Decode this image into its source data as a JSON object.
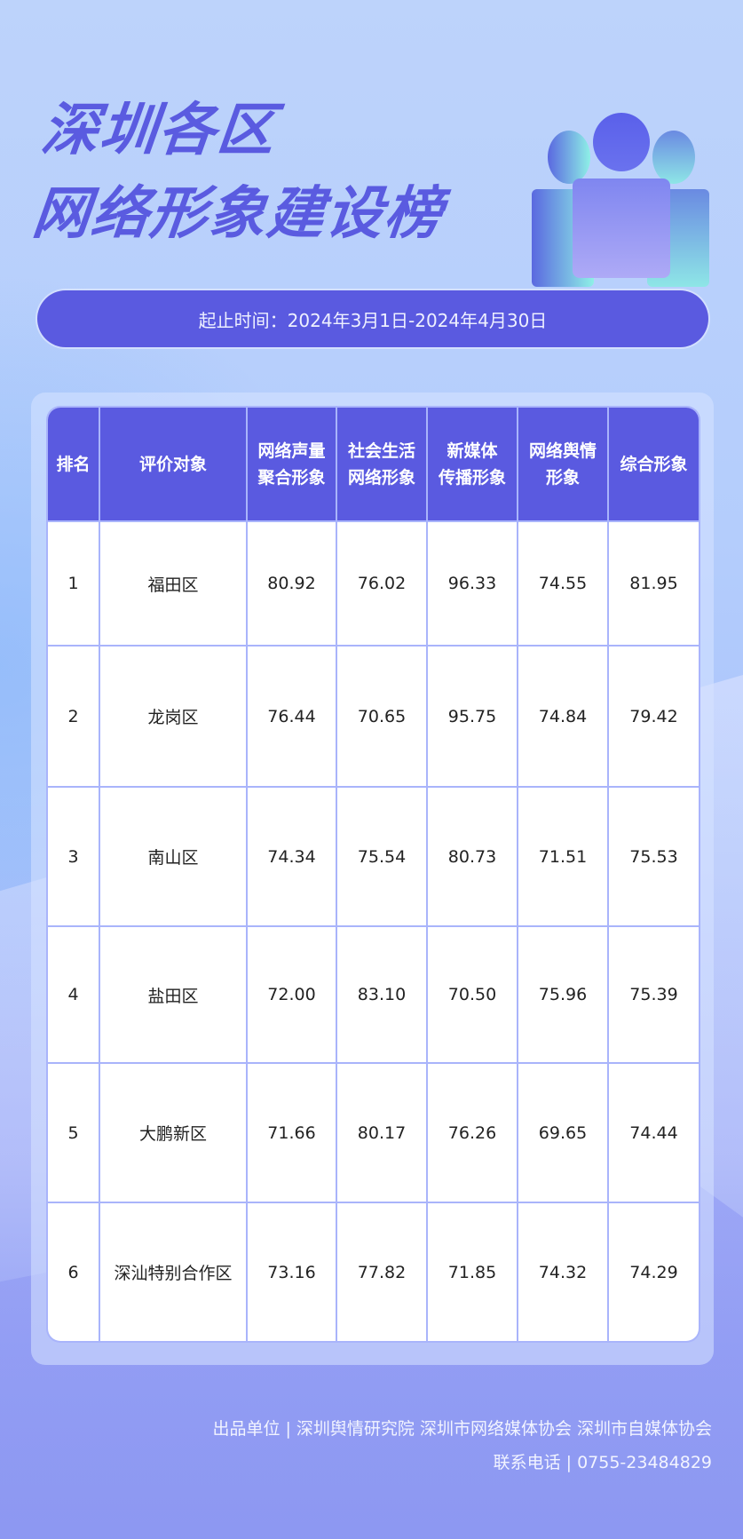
{
  "title": {
    "line1": "深圳各区",
    "line2": "网络形象建设榜"
  },
  "period": "起止时间：2024年3月1日-2024年4月30日",
  "colors": {
    "accent": "#5a5ae0",
    "border": "#a9b4fb"
  },
  "table": {
    "headers": [
      [
        "排名",
        ""
      ],
      [
        "评价对象",
        ""
      ],
      [
        "网络声量",
        "聚合形象"
      ],
      [
        "社会生活",
        "网络形象"
      ],
      [
        "新媒体",
        "传播形象"
      ],
      [
        "网络舆情",
        "形象"
      ],
      [
        "综合形象",
        ""
      ]
    ],
    "rows": [
      [
        "1",
        "福田区",
        "80.92",
        "76.02",
        "96.33",
        "74.55",
        "81.95"
      ],
      [
        "2",
        "龙岗区",
        "76.44",
        "70.65",
        "95.75",
        "74.84",
        "79.42"
      ],
      [
        "3",
        "南山区",
        "74.34",
        "75.54",
        "80.73",
        "71.51",
        "75.53"
      ],
      [
        "4",
        "盐田区",
        "72.00",
        "83.10",
        "70.50",
        "75.96",
        "75.39"
      ],
      [
        "5",
        "大鹏新区",
        "71.66",
        "80.17",
        "76.26",
        "69.65",
        "74.44"
      ],
      [
        "6",
        "深汕特别合作区",
        "73.16",
        "77.82",
        "71.85",
        "74.32",
        "74.29"
      ]
    ]
  },
  "footer": {
    "producers": "出品单位 | 深圳舆情研究院 深圳市网络媒体协会 深圳市自媒体协会",
    "contact": "联系电话 | 0755-23484829"
  }
}
